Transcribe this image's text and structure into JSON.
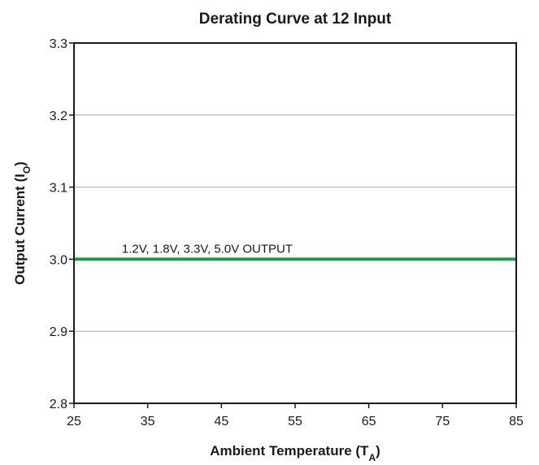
{
  "chart_data": {
    "type": "line",
    "title": "Derating Curve at 12 Input",
    "xlabel": {
      "main": "Ambient Temperature (T",
      "sub": "A",
      "close": ")"
    },
    "ylabel": {
      "main": "Output Current (I",
      "sub": "O",
      "close": ")"
    },
    "xlim": [
      25,
      85
    ],
    "ylim": [
      2.8,
      3.3
    ],
    "x_ticks": [
      25,
      35,
      45,
      55,
      65,
      75,
      85
    ],
    "y_ticks": [
      2.8,
      2.9,
      3.0,
      3.1,
      3.2,
      3.3
    ],
    "x_tick_labels": [
      "25",
      "35",
      "45",
      "55",
      "65",
      "75",
      "85"
    ],
    "y_tick_labels": [
      "2.8",
      "2.9",
      "3.0",
      "3.1",
      "3.2",
      "3.3"
    ],
    "grid": {
      "horizontal": true,
      "vertical": false
    },
    "series": [
      {
        "x": [
          25,
          85
        ],
        "values": [
          3.0,
          3.0
        ],
        "color": "#1f9a4a"
      }
    ],
    "annotations": [
      {
        "text": "1.2V, 1.8V, 3.3V, 5.0V OUTPUT",
        "x": 31.5,
        "y": 3.0
      }
    ]
  }
}
